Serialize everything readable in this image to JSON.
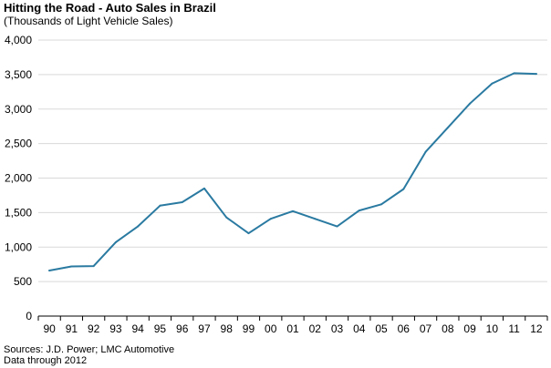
{
  "chart_data": {
    "type": "line",
    "title": "Hitting the Road - Auto Sales in Brazil",
    "subtitle": "(Thousands of Light Vehicle Sales)",
    "xlabel": "",
    "ylabel": "",
    "categories": [
      "90",
      "91",
      "92",
      "93",
      "94",
      "95",
      "96",
      "97",
      "98",
      "99",
      "00",
      "01",
      "02",
      "03",
      "04",
      "05",
      "06",
      "07",
      "08",
      "09",
      "10",
      "11",
      "12"
    ],
    "series": [
      {
        "values": [
          660,
          720,
          725,
          1070,
          1300,
          1600,
          1650,
          1850,
          1430,
          1200,
          1410,
          1520,
          1410,
          1300,
          1530,
          1620,
          1840,
          2380,
          2730,
          3080,
          3370,
          3520,
          3510
        ],
        "color": "#2a7aa1"
      }
    ],
    "ylim": [
      0,
      4000
    ],
    "yticks": [
      0,
      500,
      1000,
      1500,
      2000,
      2500,
      3000,
      3500,
      4000
    ],
    "ytick_labels": [
      "0",
      "500",
      "1,000",
      "1,500",
      "2,000",
      "2,500",
      "3,000",
      "3,500",
      "4,000"
    ],
    "grid": true,
    "source": "Sources: J.D. Power; LMC Automotive",
    "note": "Data through 2012",
    "colors": {
      "line": "#2a7aa1",
      "grid": "#d9d9d9",
      "axis": "#000000"
    }
  }
}
